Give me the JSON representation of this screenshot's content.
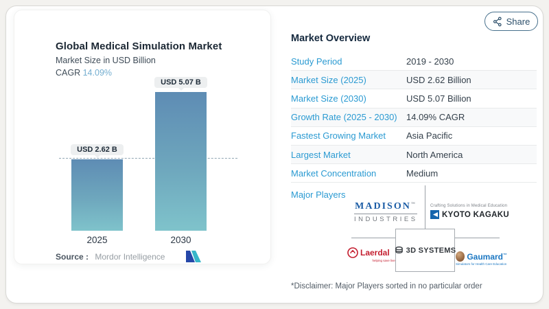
{
  "share": {
    "label": "Share"
  },
  "chart": {
    "title": "Global Medical Simulation Market",
    "subtitle": "Market Size in USD Billion",
    "cagr_label": "CAGR",
    "cagr_value": "14.09%",
    "bars": [
      {
        "year": "2025",
        "label": "USD 2.62 B"
      },
      {
        "year": "2030",
        "label": "USD 5.07 B"
      }
    ],
    "source_label": "Source :",
    "source_value": "Mordor Intelligence"
  },
  "chart_data": {
    "type": "bar",
    "title": "Global Medical Simulation Market",
    "subtitle": "Market Size in USD Billion",
    "categories": [
      "2025",
      "2030"
    ],
    "values": [
      2.62,
      5.07
    ],
    "unit": "USD Billion",
    "bar_labels": [
      "USD 2.62 B",
      "USD 5.07 B"
    ],
    "cagr": "14.09%",
    "reference_line_y": 2.62,
    "ylim": [
      0,
      5.07
    ],
    "grid": false,
    "source": "Mordor Intelligence"
  },
  "overview": {
    "title": "Market Overview",
    "rows": [
      {
        "label": "Study Period",
        "value": "2019 - 2030"
      },
      {
        "label": "Market Size (2025)",
        "value": "USD 2.62 Billion"
      },
      {
        "label": "Market Size (2030)",
        "value": "USD 5.07 Billion"
      },
      {
        "label": "Growth Rate (2025 - 2030)",
        "value": "14.09% CAGR"
      },
      {
        "label": "Fastest Growing Market",
        "value": "Asia Pacific"
      },
      {
        "label": "Largest Market",
        "value": "North America"
      },
      {
        "label": "Market Concentration",
        "value": "Medium"
      }
    ],
    "major_players_label": "Major Players",
    "disclaimer": "*Disclaimer: Major Players sorted in no particular order"
  },
  "players": {
    "madison_line1": "MADISON",
    "madison_tm": "™",
    "madison_line2": "INDUSTRIES",
    "kyoto_tagline": "Crafting Solutions in Medical Education",
    "kyoto_name": "KYOTO KAGAKU",
    "laerdal_name": "Laerdal",
    "laerdal_tagline": "helping save lives",
    "threed_name": "3D SYSTEMS",
    "gaumard_name": "Gaumard",
    "gaumard_tm": "™",
    "gaumard_tagline": "Simulators for Health Care Education"
  },
  "colors": {
    "accent_blue": "#2a9ad2",
    "bar_top": "#5e8cb4",
    "bar_bottom": "#7fc3cb",
    "cagr_highlight": "#74aed0",
    "heading_navy": "#15293e",
    "share_border": "#47708c",
    "logo_dark_blue": "#2547a8",
    "logo_teal": "#38b6c9"
  }
}
